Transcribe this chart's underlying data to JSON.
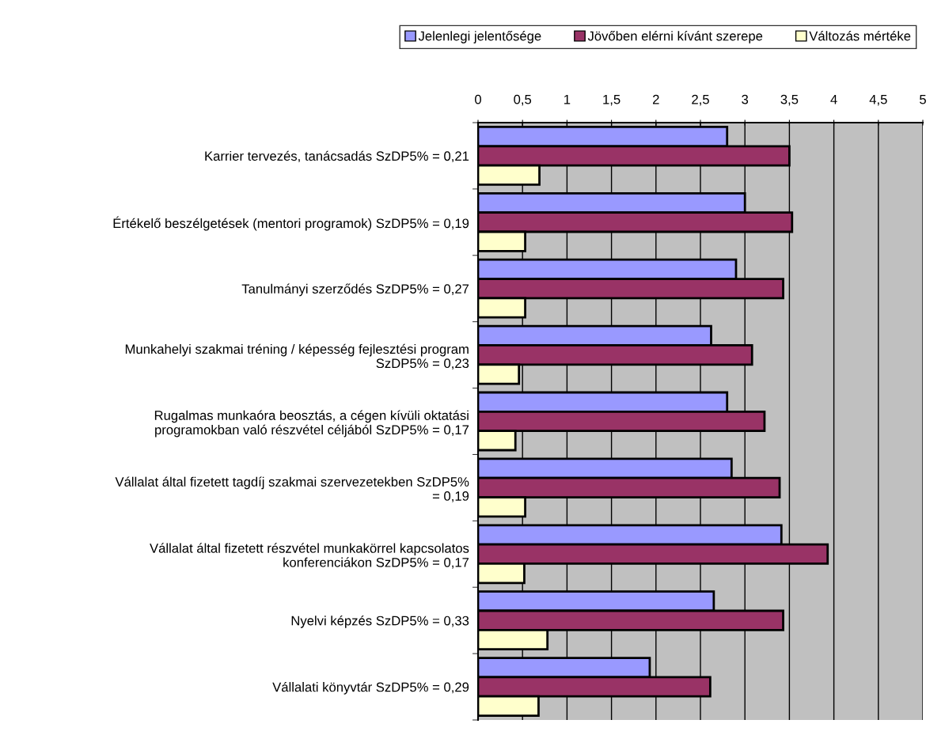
{
  "chart_data": {
    "type": "bar",
    "orientation": "horizontal",
    "categories": [
      "Karrier tervezés, tanácsadás SzDP5% = 0,21",
      "Értékelő beszélgetések (mentori programok) SzDP5% = 0,19",
      "Tanulmányi szerződés SzDP5% = 0,27",
      "Munkahelyi szakmai tréning / képesség fejlesztési program\nSzDP5% = 0,23",
      "Rugalmas munkaóra beosztás, a cégen kívüli oktatási\nprogramokban való részvétel céljából SzDP5% = 0,17",
      "Vállalat által fizetett tagdíj szakmai szervezetekben SzDP5%\n= 0,19",
      "Vállalat által fizetett részvétel munkakörrel kapcsolatos\nkonferenciákon SzDP5% = 0,17",
      "Nyelvi képzés SzDP5% = 0,33",
      "Vállalati könyvtár SzDP5% = 0,29"
    ],
    "series": [
      {
        "name": "Jelenlegi jelentősége",
        "color": "#9999ff",
        "values": [
          2.8,
          3.0,
          2.9,
          2.62,
          2.8,
          2.85,
          3.41,
          2.65,
          1.93
        ]
      },
      {
        "name": "Jövőben elérni kívánt szerepe",
        "color": "#993366",
        "values": [
          3.5,
          3.53,
          3.43,
          3.08,
          3.22,
          3.39,
          3.93,
          3.43,
          2.61
        ]
      },
      {
        "name": "Változás mértéke",
        "color": "#ffffcc",
        "values": [
          0.69,
          0.53,
          0.53,
          0.46,
          0.42,
          0.53,
          0.52,
          0.78,
          0.68
        ]
      }
    ],
    "xlim": [
      0,
      5
    ],
    "xticks": [
      0,
      {
        "value": 0.5,
        "label": "0,5"
      },
      1,
      {
        "value": 1.5,
        "label": "1,5"
      },
      2,
      {
        "value": 2.5,
        "label": "2,5"
      },
      3,
      {
        "value": 3.5,
        "label": "3,5"
      },
      4,
      {
        "value": 4.5,
        "label": "4,5"
      },
      5
    ],
    "grid": "x",
    "legend": "top"
  }
}
